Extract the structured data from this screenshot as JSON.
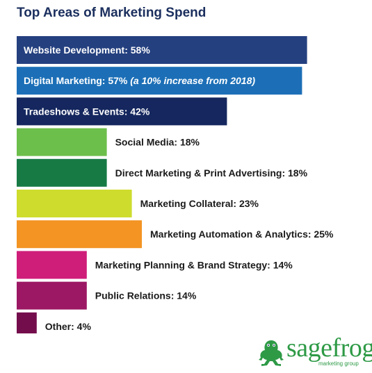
{
  "title": "Top Areas of Marketing Spend",
  "logo": {
    "name": "sagefrog",
    "tagline": "marketing group"
  },
  "chart_data": {
    "type": "bar",
    "orientation": "horizontal",
    "title": "Top Areas of Marketing Spend",
    "xlabel": "",
    "ylabel": "",
    "xlim": [
      0,
      60
    ],
    "grid": false,
    "unit": "%",
    "categories": [
      "Website Development",
      "Digital Marketing",
      "Tradeshows & Events",
      "Social Media",
      "Direct Marketing & Print Advertising",
      "Marketing Collateral",
      "Marketing Automation & Analytics",
      "Marketing Planning & Brand Strategy",
      "Public Relations",
      "Other"
    ],
    "values": [
      58,
      57,
      42,
      18,
      18,
      23,
      25,
      14,
      14,
      4
    ],
    "labels": [
      "Website Development: 58%",
      "Digital Marketing: 57%",
      "Tradeshows & Events: 42%",
      "Social Media: 18%",
      "Direct Marketing & Print Advertising: 18%",
      "Marketing Collateral: 23%",
      "Marketing Automation & Analytics: 25%",
      "Marketing Planning & Brand Strategy: 14%",
      "Public Relations: 14%",
      "Other: 4%"
    ],
    "annotations": [
      "",
      " (a 10% increase from 2018)",
      "",
      "",
      "",
      "",
      "",
      "",
      "",
      ""
    ],
    "label_inside": [
      true,
      true,
      true,
      false,
      false,
      false,
      false,
      false,
      false,
      false
    ],
    "colors": [
      "#24407f",
      "#1c6fb7",
      "#15275e",
      "#6dbf4b",
      "#177a45",
      "#cedc2e",
      "#f39423",
      "#cf1d7a",
      "#9c1864",
      "#740d4c"
    ]
  }
}
